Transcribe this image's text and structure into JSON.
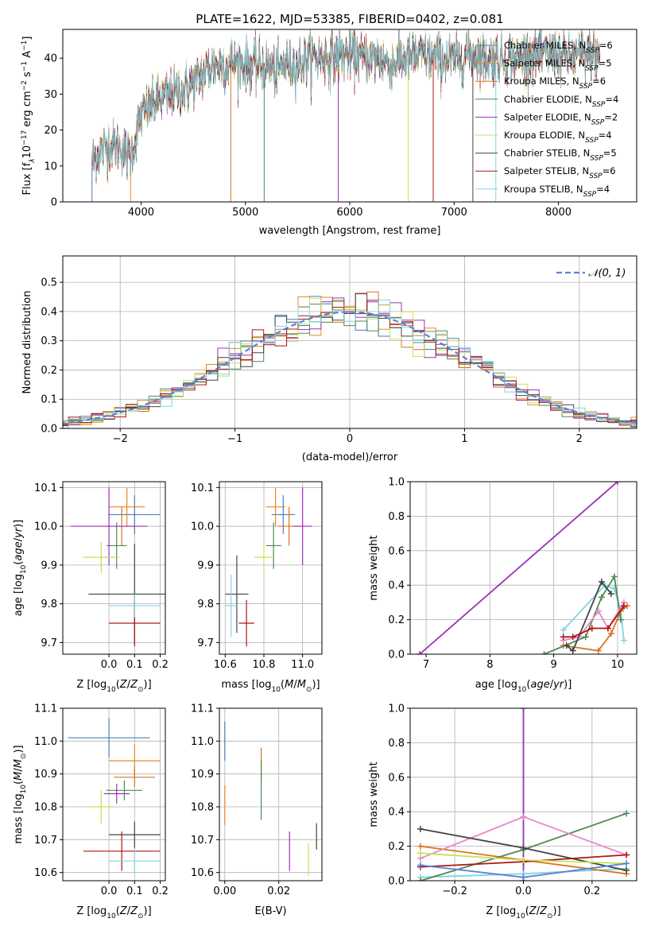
{
  "figure": {
    "title": "PLATE=1622, MJD=53385, FIBERID=0402, z=0.081"
  },
  "models": [
    {
      "name": "Chabrier MILES",
      "nssp": "6",
      "color": "#4a7fb5"
    },
    {
      "name": "Salpeter MILES",
      "nssp": "5",
      "color": "#e8872a"
    },
    {
      "name": "Kroupa MILES",
      "nssp": "6",
      "color": "#d9741c"
    },
    {
      "name": "Chabrier ELODIE",
      "nssp": "4",
      "color": "#4e8a55"
    },
    {
      "name": "Salpeter ELODIE",
      "nssp": "2",
      "color": "#9b30b8"
    },
    {
      "name": "Kroupa ELODIE",
      "nssp": "4",
      "color": "#c9e05a"
    },
    {
      "name": "Chabrier STELIB",
      "nssp": "5",
      "color": "#444444"
    },
    {
      "name": "Salpeter STELIB",
      "nssp": "6",
      "color": "#b01515"
    },
    {
      "name": "Kroupa STELIB",
      "nssp": "4",
      "color": "#7fd6e0"
    }
  ],
  "chart_data": [
    {
      "id": "spectrum",
      "type": "line",
      "xlabel": "wavelength [Angstrom, rest frame]",
      "ylabel_parts": [
        "Flux [f",
        "λ",
        "10",
        "−17",
        " erg cm",
        "−2",
        " s",
        "−1",
        " A",
        "−1",
        "]"
      ],
      "xlim": [
        3250,
        8750
      ],
      "ylim": [
        0,
        48
      ],
      "xticks": [
        4000,
        5000,
        6000,
        7000,
        8000
      ],
      "yticks": [
        0,
        10,
        20,
        30,
        40
      ],
      "legend_location": "right",
      "legend_sub": "SSP",
      "spectrum_envelope": {
        "x": [
          3530,
          3600,
          3700,
          3800,
          3900,
          4000,
          4100,
          4200,
          4300,
          4400,
          4500,
          4600,
          4700,
          4800,
          4900,
          5000,
          5100,
          5200,
          5300,
          5400,
          5500,
          5600,
          5700,
          5800,
          5900,
          6000,
          6100,
          6200,
          6300,
          6400,
          6500,
          6600,
          6700,
          6800,
          6900,
          7000,
          7100,
          7200,
          7300,
          7400,
          7500,
          7600,
          7700,
          7800,
          7900,
          8000,
          8100,
          8200,
          8300,
          8400
        ],
        "y": [
          11,
          14,
          16,
          15,
          13,
          24,
          27,
          29,
          30,
          31,
          33,
          36,
          38,
          38,
          39,
          38,
          38,
          38,
          36,
          39,
          38,
          40,
          40,
          40,
          41,
          41,
          40,
          40,
          40,
          38,
          40,
          40,
          41,
          40,
          40,
          39,
          41,
          41,
          40,
          40,
          40,
          40,
          41,
          41,
          41,
          41,
          40,
          41,
          41,
          40
        ]
      }
    },
    {
      "id": "residuals",
      "type": "histogram",
      "xlabel": "(data-model)/error",
      "ylabel": "Normed distribution",
      "xlim": [
        -2.5,
        2.5
      ],
      "ylim": [
        0,
        0.59
      ],
      "xticks": [
        -2,
        -1,
        0,
        1,
        2
      ],
      "yticks": [
        0.0,
        0.1,
        0.2,
        0.3,
        0.4,
        0.5
      ],
      "reference_curve": "N(0,1)",
      "bin_width": 0.1
    },
    {
      "id": "age-vs-Z",
      "type": "scatter",
      "xlabel_parts": [
        "Z [log",
        "10",
        "(",
        "Z",
        "/",
        "Z",
        "⊙",
        ")]"
      ],
      "ylabel_parts": [
        "age  [log",
        "10",
        "(",
        "age",
        "/",
        "yr",
        ")]"
      ],
      "xlim": [
        -0.18,
        0.22
      ],
      "ylim": [
        9.67,
        10.115
      ],
      "xticks": [
        0.0,
        0.1,
        0.2
      ],
      "yticks": [
        9.7,
        9.8,
        9.9,
        10.0,
        10.1
      ],
      "points": [
        {
          "x": 0.1,
          "y": 10.03,
          "xerr": 0.1,
          "yerr": 0.05
        },
        {
          "x": 0.07,
          "y": 10.05,
          "xerr": 0.07,
          "yerr": 0.05
        },
        {
          "x": 0.05,
          "y": 10.0,
          "xerr": 0.07,
          "yerr": 0.05
        },
        {
          "x": 0.03,
          "y": 9.95,
          "xerr": 0.04,
          "yerr": 0.06
        },
        {
          "x": 0.0,
          "y": 10.0,
          "xerr": 0.15,
          "yerr": 0.1
        },
        {
          "x": -0.03,
          "y": 9.92,
          "xerr": 0.07,
          "yerr": 0.04
        },
        {
          "x": 0.1,
          "y": 9.825,
          "xerr": 0.18,
          "yerr": 0.13
        },
        {
          "x": 0.1,
          "y": 9.75,
          "xerr": 0.1,
          "yerr": 0.06
        },
        {
          "x": 0.1,
          "y": 9.795,
          "xerr": 0.1,
          "yerr": 0.03
        }
      ]
    },
    {
      "id": "age-vs-mass",
      "type": "scatter",
      "xlabel_parts": [
        "mass [log",
        "10",
        "(",
        "M",
        "/",
        "M",
        "⊙",
        ")]"
      ],
      "xlim": [
        10.57,
        11.1
      ],
      "ylim": [
        9.67,
        10.115
      ],
      "xticks": [
        10.6,
        10.8,
        11.0
      ],
      "yticks": [
        9.7,
        9.8,
        9.9,
        10.0,
        10.1
      ],
      "points": [
        {
          "x": 10.9,
          "y": 10.03,
          "xerr": 0.06,
          "yerr": 0.05
        },
        {
          "x": 10.86,
          "y": 10.05,
          "xerr": 0.05,
          "yerr": 0.05
        },
        {
          "x": 10.93,
          "y": 10.0,
          "xerr": 0.06,
          "yerr": 0.05
        },
        {
          "x": 10.85,
          "y": 9.95,
          "xerr": 0.04,
          "yerr": 0.06
        },
        {
          "x": 11.0,
          "y": 10.0,
          "xerr": 0.05,
          "yerr": 0.1
        },
        {
          "x": 10.8,
          "y": 9.92,
          "xerr": 0.05,
          "yerr": 0.04
        },
        {
          "x": 10.66,
          "y": 9.825,
          "xerr": 0.06,
          "yerr": 0.1
        },
        {
          "x": 10.71,
          "y": 9.75,
          "xerr": 0.04,
          "yerr": 0.06
        },
        {
          "x": 10.63,
          "y": 9.795,
          "xerr": 0.03,
          "yerr": 0.08
        }
      ]
    },
    {
      "id": "mass-weight-vs-age",
      "type": "line",
      "xlabel_parts": [
        "age  [log",
        "10",
        "(",
        "age",
        "/",
        "yr",
        ")]"
      ],
      "ylabel": "mass weight",
      "xlim": [
        6.75,
        10.3
      ],
      "ylim": [
        0,
        1.0
      ],
      "xticks": [
        7,
        8,
        9,
        10
      ],
      "yticks": [
        0.0,
        0.2,
        0.4,
        0.6,
        0.8,
        1.0
      ],
      "series": [
        {
          "x": [
            6.9,
            10.0
          ],
          "y": [
            0.0,
            1.0
          ]
        },
        {
          "x": [
            9.15,
            9.8,
            9.95,
            10.05,
            10.1
          ],
          "y": [
            0.14,
            0.4,
            0.38,
            0.25,
            0.08
          ]
        },
        {
          "x": [
            9.15,
            9.7,
            9.9,
            10.05,
            10.15
          ],
          "y": [
            0.05,
            0.02,
            0.12,
            0.25,
            0.28
          ]
        },
        {
          "x": [
            8.85,
            9.5,
            9.75,
            9.95,
            10.05
          ],
          "y": [
            0.0,
            0.1,
            0.33,
            0.45,
            0.2
          ]
        },
        {
          "x": [
            9.15,
            9.4,
            9.7,
            9.85,
            10.1
          ],
          "y": [
            0.08,
            0.1,
            0.25,
            0.15,
            0.3
          ]
        },
        {
          "x": [
            9.2,
            9.3,
            9.75,
            9.9
          ],
          "y": [
            0.05,
            0.02,
            0.42,
            0.35
          ]
        },
        {
          "x": [
            9.15,
            9.3,
            9.6,
            9.85,
            10.1
          ],
          "y": [
            0.1,
            0.1,
            0.15,
            0.15,
            0.28
          ]
        }
      ]
    },
    {
      "id": "mass-vs-Z",
      "type": "scatter",
      "xlabel_parts": [
        "Z [log",
        "10",
        "(",
        "Z",
        "/",
        "Z",
        "⊙",
        ")]"
      ],
      "ylabel_parts": [
        "mass [log",
        "10",
        "(",
        "M",
        "/",
        "M",
        "⊙",
        ")]"
      ],
      "xlim": [
        -0.18,
        0.22
      ],
      "ylim": [
        10.575,
        11.1
      ],
      "xticks": [
        0.0,
        0.1,
        0.2
      ],
      "yticks": [
        10.6,
        10.7,
        10.8,
        10.9,
        11.0,
        11.1
      ],
      "points": [
        {
          "x": 0.0,
          "y": 11.01,
          "xerr": 0.16,
          "yerr": 0.06
        },
        {
          "x": 0.1,
          "y": 10.94,
          "xerr": 0.1,
          "yerr": 0.05
        },
        {
          "x": 0.1,
          "y": 10.89,
          "xerr": 0.08,
          "yerr": 0.03
        },
        {
          "x": 0.06,
          "y": 10.85,
          "xerr": 0.07,
          "yerr": 0.03
        },
        {
          "x": 0.03,
          "y": 10.84,
          "xerr": 0.05,
          "yerr": 0.03
        },
        {
          "x": -0.03,
          "y": 10.8,
          "xerr": 0.05,
          "yerr": 0.05
        },
        {
          "x": 0.1,
          "y": 10.715,
          "xerr": 0.1,
          "yerr": 0.04
        },
        {
          "x": 0.05,
          "y": 10.665,
          "xerr": 0.15,
          "yerr": 0.06
        },
        {
          "x": 0.1,
          "y": 10.635,
          "xerr": 0.1,
          "yerr": 0.04
        }
      ]
    },
    {
      "id": "mass-vs-EBV",
      "type": "scatter",
      "xlabel": "E(B-V)",
      "xlim": [
        -0.002,
        0.036
      ],
      "ylim": [
        10.575,
        11.1
      ],
      "xticks": [
        0.0,
        0.02
      ],
      "yticks": [
        10.6,
        10.7,
        10.8,
        10.9,
        11.0,
        11.1
      ],
      "points": [
        {
          "x": 0.0,
          "y": 11.0,
          "yerr": 0.06
        },
        {
          "x": 0.0,
          "y": 10.805,
          "yerr": 0.06
        },
        {
          "x": 0.0135,
          "y": 10.93,
          "yerr": 0.05
        },
        {
          "x": 0.0135,
          "y": 10.85,
          "yerr": 0.09
        },
        {
          "x": 0.024,
          "y": 10.665,
          "yerr": 0.06
        },
        {
          "x": 0.031,
          "y": 10.64,
          "yerr": 0.05
        },
        {
          "x": 0.034,
          "y": 10.71,
          "yerr": 0.04
        }
      ]
    },
    {
      "id": "mass-weight-vs-Z",
      "type": "line",
      "xlabel_parts": [
        "Z [log",
        "10",
        "(",
        "Z",
        "/",
        "Z",
        "⊙",
        ")]"
      ],
      "ylabel": "mass weight",
      "xlim": [
        -0.33,
        0.33
      ],
      "ylim": [
        0,
        1.0
      ],
      "xticks": [
        -0.2,
        0.0,
        0.2
      ],
      "yticks": [
        0.0,
        0.2,
        0.4,
        0.6,
        0.8,
        1.0
      ],
      "series": [
        {
          "x": [
            0.0,
            0.0
          ],
          "y": [
            0.0,
            1.0
          ]
        },
        {
          "x": [
            -0.3,
            0.0,
            0.3
          ],
          "y": [
            0.02,
            0.04,
            0.07
          ]
        },
        {
          "x": [
            -0.3,
            0.0,
            0.3
          ],
          "y": [
            0.2,
            0.12,
            0.04
          ]
        },
        {
          "x": [
            -0.3,
            0.0,
            0.3
          ],
          "y": [
            0.0,
            0.18,
            0.39
          ]
        },
        {
          "x": [
            -0.3,
            0.0,
            0.3
          ],
          "y": [
            0.13,
            0.37,
            0.15
          ]
        },
        {
          "x": [
            -0.3,
            0.0,
            0.3
          ],
          "y": [
            0.3,
            0.19,
            0.06
          ]
        },
        {
          "x": [
            -0.3,
            0.0,
            0.3
          ],
          "y": [
            0.08,
            0.11,
            0.15
          ]
        },
        {
          "x": [
            -0.3,
            0.0,
            0.3
          ],
          "y": [
            0.16,
            0.12,
            0.1
          ]
        },
        {
          "x": [
            -0.3,
            0.0,
            0.3
          ],
          "y": [
            0.09,
            0.02,
            0.1
          ]
        }
      ]
    }
  ]
}
